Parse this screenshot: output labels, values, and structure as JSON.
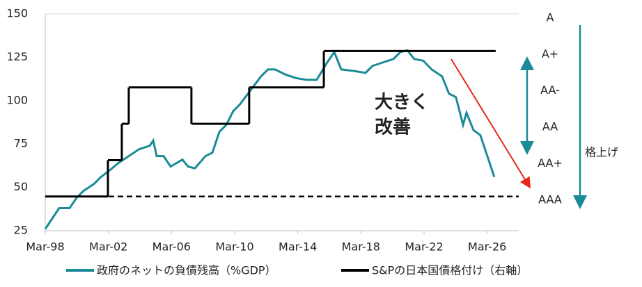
{
  "chart_data": {
    "type": "line",
    "xlim": [
      1998.25,
      2028.25
    ],
    "xticks": [
      {
        "value": 1998.25,
        "label": "Mar-98"
      },
      {
        "value": 2002.25,
        "label": "Mar-02"
      },
      {
        "value": 2006.25,
        "label": "Mar-06"
      },
      {
        "value": 2010.25,
        "label": "Mar-10"
      },
      {
        "value": 2014.25,
        "label": "Mar-14"
      },
      {
        "value": 2018.25,
        "label": "Mar-18"
      },
      {
        "value": 2022.25,
        "label": "Mar-22"
      },
      {
        "value": 2026.25,
        "label": "Mar-26"
      }
    ],
    "ylim": [
      25,
      150
    ],
    "yticks": [
      25,
      50,
      75,
      100,
      125,
      150
    ],
    "y2lim": [
      -0.94,
      5.02
    ],
    "y2ticks": [
      {
        "value": 0,
        "label": "AAA"
      },
      {
        "value": 1,
        "label": "AA+"
      },
      {
        "value": 2,
        "label": "AA"
      },
      {
        "value": 3,
        "label": "AA-"
      },
      {
        "value": 4,
        "label": "A+"
      },
      {
        "value": 5,
        "label": "A"
      }
    ],
    "series": [
      {
        "name": "政府のネットの負債残高（%GDP）",
        "color": "#1a8a96",
        "x": [
          1998.25,
          1999.13,
          1999.79,
          2000.24,
          2000.68,
          2001.34,
          2001.78,
          2002.22,
          2002.88,
          2003.54,
          2004.2,
          2004.87,
          2005.09,
          2005.31,
          2005.75,
          2006.19,
          2006.94,
          2007.3,
          2007.73,
          2008.4,
          2008.84,
          2009.28,
          2009.72,
          2010.16,
          2010.6,
          2011.26,
          2011.92,
          2012.37,
          2012.81,
          2013.47,
          2014.13,
          2014.79,
          2015.45,
          2016.11,
          2016.56,
          2017.0,
          2017.88,
          2018.54,
          2018.98,
          2019.64,
          2020.31,
          2020.75,
          2021.19,
          2021.63,
          2022.2,
          2022.73,
          2023.39,
          2023.83,
          2024.27,
          2024.72,
          2024.94,
          2025.38,
          2025.82,
          2026.26,
          2026.7
        ],
        "values": [
          26,
          38,
          38,
          44,
          48,
          52,
          56,
          59,
          64,
          68,
          72,
          74,
          77,
          68,
          68,
          62,
          66,
          62,
          61,
          68,
          70,
          82,
          86,
          94,
          98,
          106,
          114,
          118,
          118,
          115,
          113,
          112,
          112,
          122,
          128,
          118,
          117,
          116,
          120,
          122,
          124,
          128,
          129,
          124,
          123,
          118,
          114,
          104,
          102,
          86,
          93,
          83,
          80,
          68,
          56
        ]
      },
      {
        "name": "S&Pの日本国債格付け（右軸）",
        "color": "#000000",
        "axis": "y2",
        "step": true,
        "x": [
          1998.25,
          2002.22,
          2003.1,
          2003.54,
          2007.51,
          2011.17,
          2015.9,
          2026.79
        ],
        "values": [
          0,
          1,
          2,
          3,
          2,
          3,
          4,
          4
        ]
      }
    ],
    "annotation_lines": [
      "大きく",
      "改善"
    ],
    "right_note": "格上げ"
  }
}
